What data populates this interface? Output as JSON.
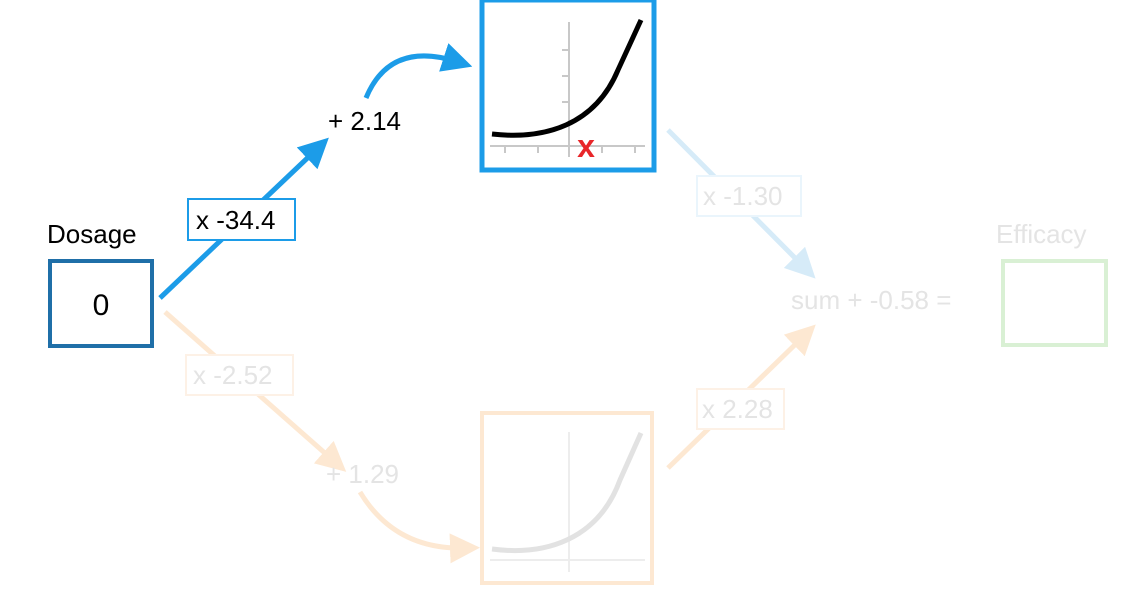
{
  "input": {
    "label": "Dosage",
    "value": "0"
  },
  "output": {
    "label": "Efficacy"
  },
  "top_path": {
    "weight_label": "x -34.4",
    "bias_label": "+ 2.14",
    "weight_out_label": "x -1.30"
  },
  "bottom_path": {
    "weight_label": "x -2.52",
    "bias_label": "+ 1.29",
    "weight_out_label": "x 2.28"
  },
  "sum": {
    "label": "sum + -0.58 ="
  },
  "marker": {
    "symbol": "x"
  },
  "colors": {
    "active_blue": "#1c9ce8",
    "node_blue": "#1f6fa8",
    "faded_blue": "#d6ebf8",
    "faded_orange": "#fde8d2",
    "faded_green": "#d9f0d4",
    "faded_text": "#e4e4e4",
    "marker_red": "#e8262a"
  }
}
